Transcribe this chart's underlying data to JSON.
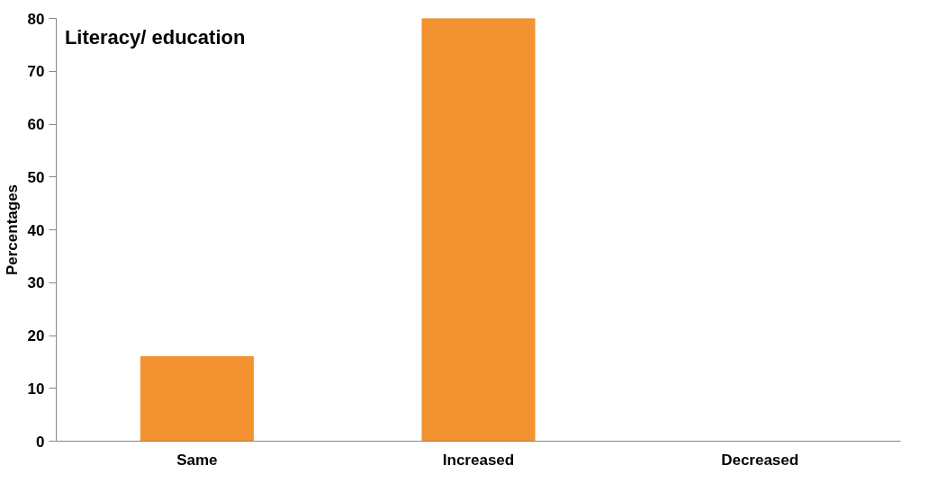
{
  "chart_data": {
    "type": "bar",
    "title": "Literacy/ education",
    "ylabel": "Percentages",
    "categories": [
      "Same",
      "Increased",
      "Decreased"
    ],
    "values": [
      16,
      80,
      0
    ],
    "color": "#f39230",
    "ylim": [
      0,
      80
    ],
    "yticks": [
      0,
      10,
      20,
      30,
      40,
      50,
      60,
      70,
      80
    ],
    "grid": false
  }
}
